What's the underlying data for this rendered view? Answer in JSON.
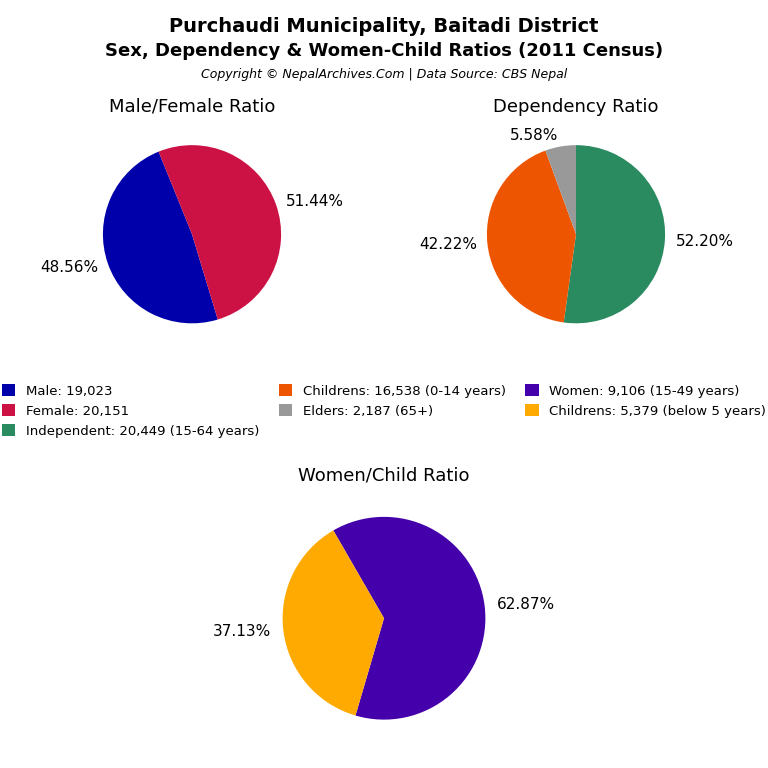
{
  "title": "Purchaudi Municipality, Baitadi District",
  "subtitle": "Sex, Dependency & Women-Child Ratios (2011 Census)",
  "annotations": [
    "Copyright © NepalArchives.Com | Data Source: CBS Nepal"
  ],
  "legend": "center",
  "chart_data": [
    {
      "type": "pie",
      "title": "Male/Female Ratio",
      "categories": [
        "Male: 19,023",
        "Female: 20,151"
      ],
      "values": [
        48.56,
        51.44
      ],
      "value_labels": [
        "48.56%",
        "51.44%"
      ],
      "colors": [
        "#0000aa",
        "#cc1144"
      ],
      "data_labels": true
    },
    {
      "type": "pie",
      "title": "Dependency Ratio",
      "categories": [
        "Independent: 20,449 (15-64 years)",
        "Childrens: 16,538 (0-14 years)",
        "Elders: 2,187 (65+)"
      ],
      "values": [
        52.2,
        42.22,
        5.58
      ],
      "value_labels": [
        "52.20%",
        "42.22%",
        "5.58%"
      ],
      "colors": [
        "#2a8a60",
        "#ee5500",
        "#999999"
      ],
      "data_labels": true
    },
    {
      "type": "pie",
      "title": "Women/Child Ratio",
      "categories": [
        "Women: 9,106 (15-49 years)",
        "Childrens: 5,379 (below 5 years)"
      ],
      "values": [
        62.87,
        37.13
      ],
      "value_labels": [
        "62.87%",
        "37.13%"
      ],
      "colors": [
        "#4400aa",
        "#ffaa00"
      ],
      "data_labels": true
    }
  ]
}
